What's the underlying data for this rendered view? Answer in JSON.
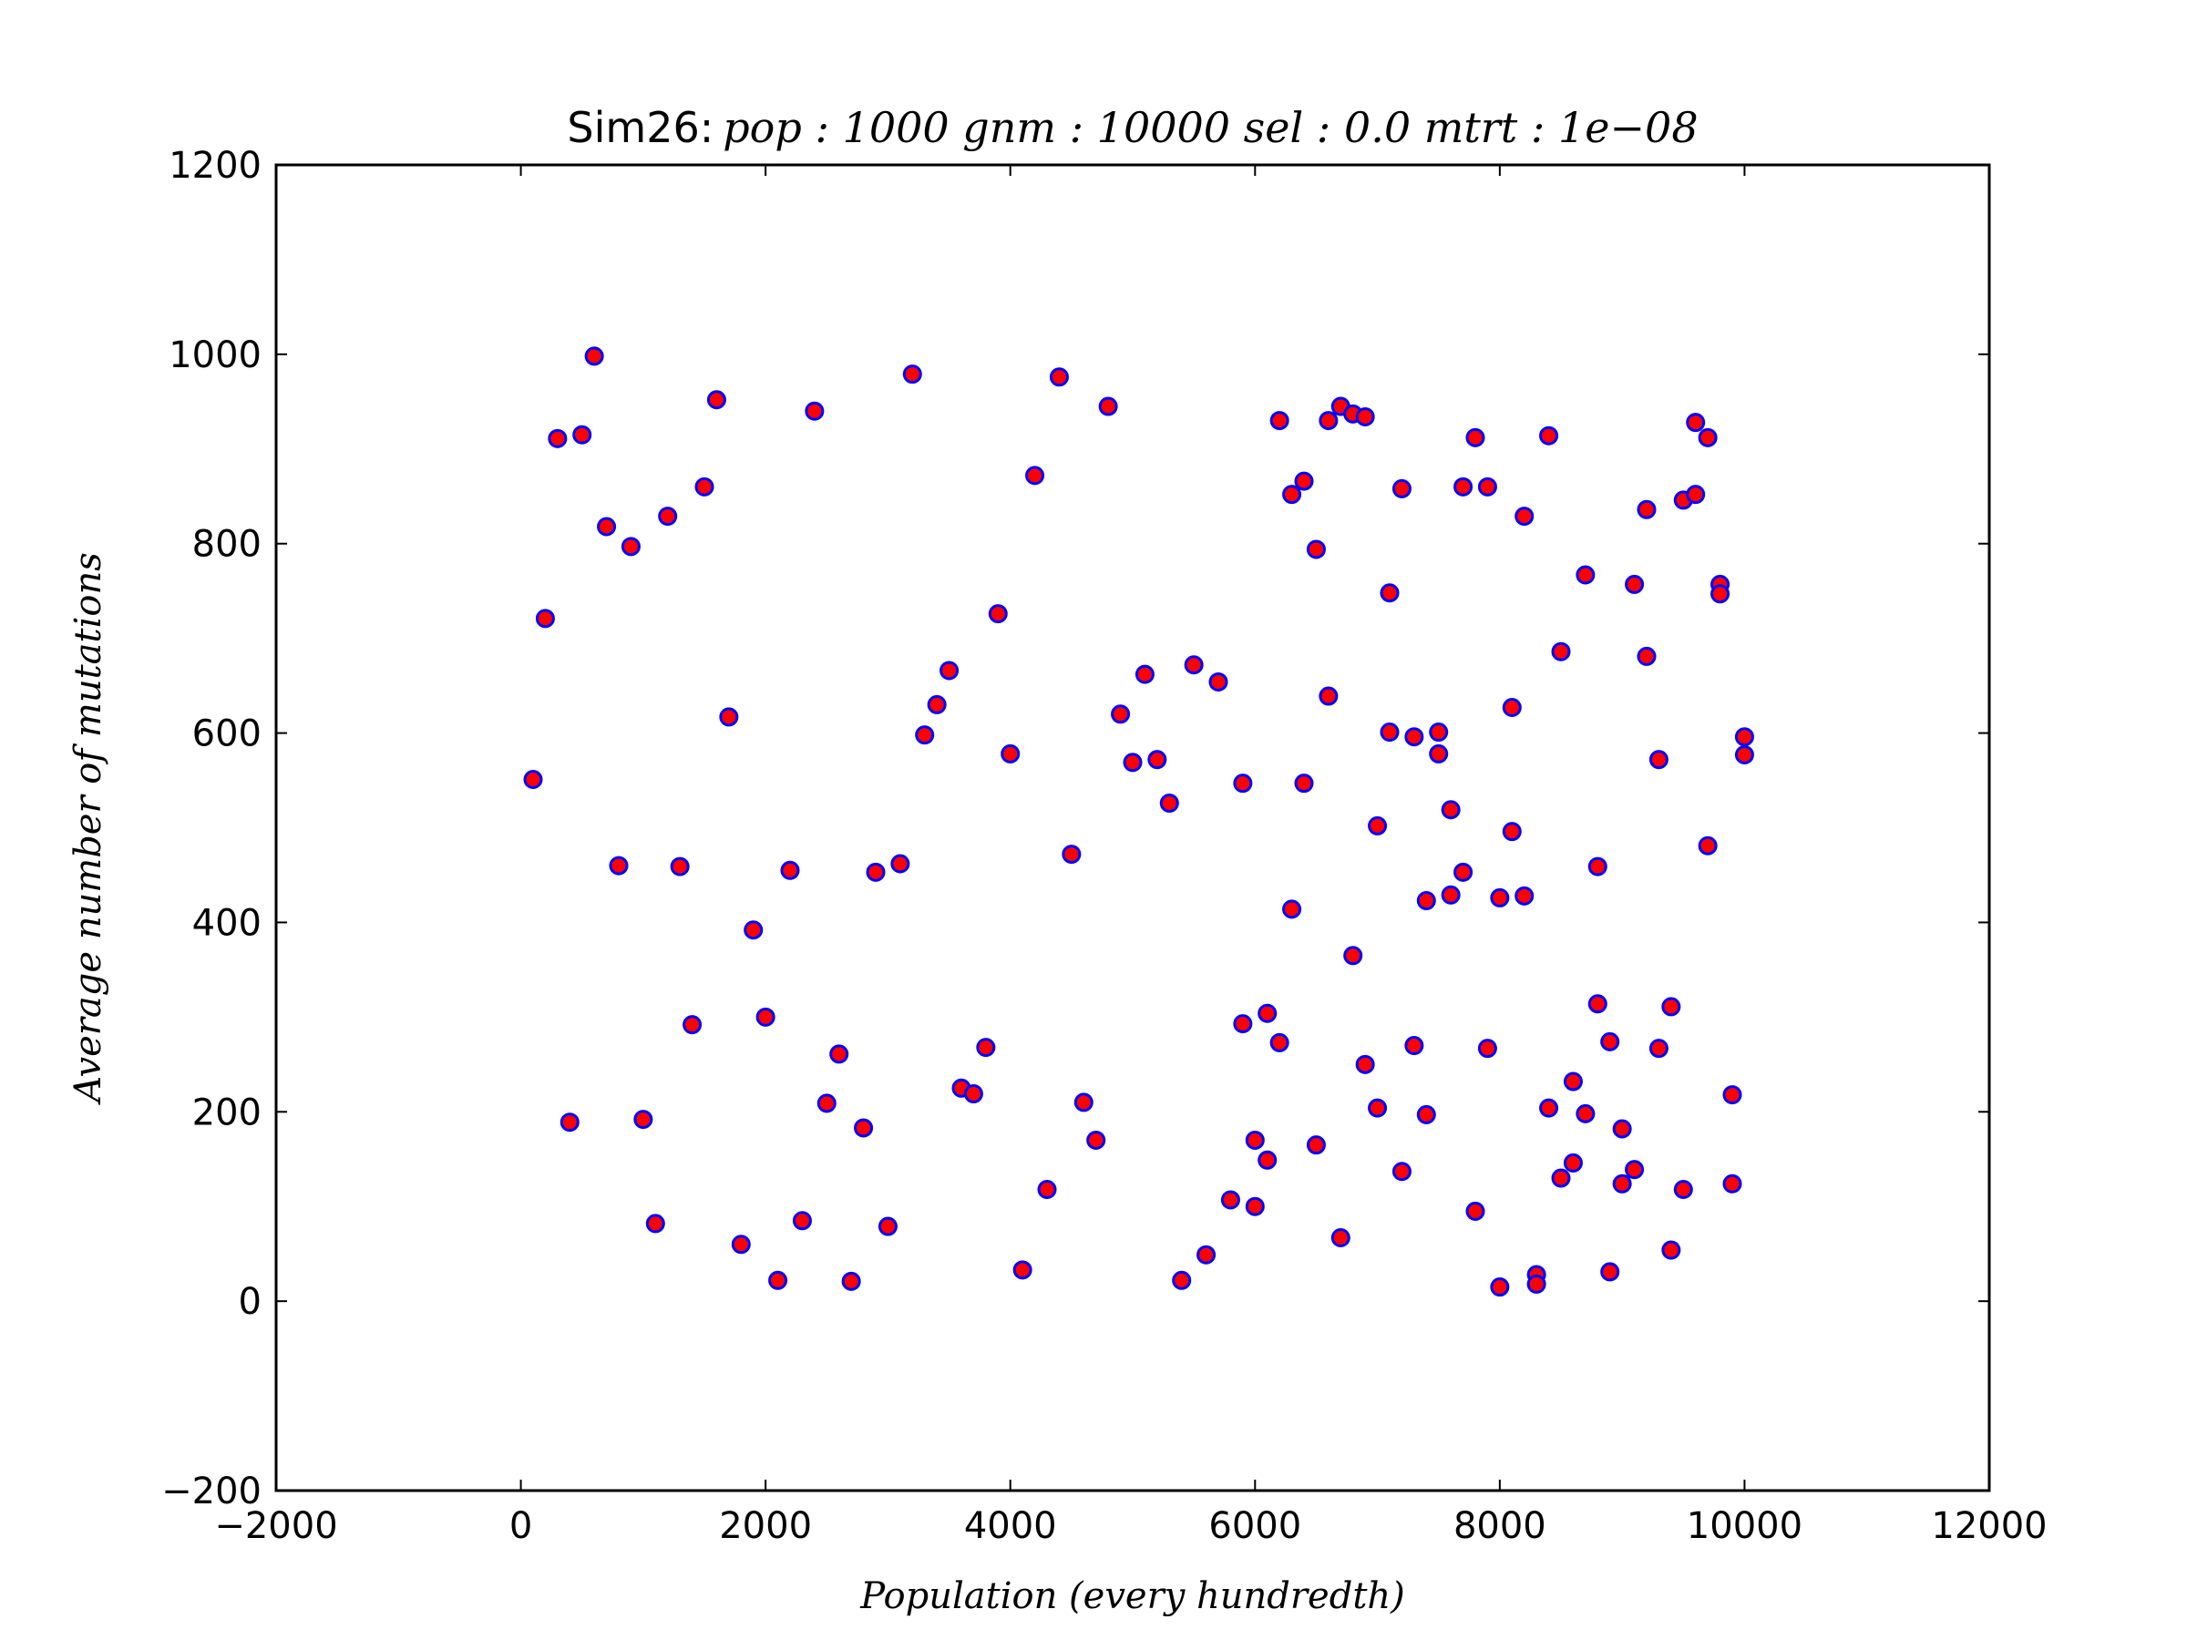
{
  "chart_data": {
    "type": "scatter",
    "title": "Sim26:",
    "title_math": "pop : 1000 gnm : 10000 sel : 0.0 mtrt : 1e−08",
    "xlabel": "Population (every hundredth)",
    "ylabel": "Average number of mutations",
    "color": "#ff0000",
    "edgecolor": "#0000ff",
    "xlim": [
      -2000,
      12000
    ],
    "xticks": [
      {
        "value": -2000,
        "label": "−2000"
      },
      0,
      2000,
      4000,
      6000,
      8000,
      10000,
      12000
    ],
    "ylim": [
      -200,
      1200
    ],
    "yticks": [
      {
        "value": -200,
        "label": "−200"
      },
      0,
      200,
      400,
      600,
      800,
      1000,
      1200
    ],
    "x": [
      100,
      200,
      300,
      400,
      500,
      600,
      700,
      800,
      900,
      1000,
      1100,
      1200,
      1300,
      1400,
      1500,
      1600,
      1700,
      1800,
      1900,
      2000,
      2100,
      2200,
      2300,
      2400,
      2500,
      2600,
      2700,
      2800,
      2900,
      3000,
      3100,
      3200,
      3300,
      3400,
      3500,
      3600,
      3700,
      3800,
      3900,
      4000,
      4100,
      4200,
      4300,
      4400,
      4500,
      4600,
      4700,
      4800,
      4900,
      5000,
      5100,
      5200,
      5300,
      5400,
      5500,
      5600,
      5700,
      5800,
      5900,
      5900,
      6000,
      6000,
      6100,
      6100,
      6200,
      6200,
      6300,
      6300,
      6400,
      6400,
      6500,
      6500,
      6600,
      6600,
      6700,
      6700,
      6800,
      6800,
      6900,
      6900,
      7000,
      7000,
      7100,
      7100,
      7200,
      7200,
      7300,
      7300,
      7400,
      7400,
      7500,
      7500,
      7600,
      7600,
      7700,
      7700,
      7800,
      7800,
      7900,
      7900,
      8000,
      8000,
      8100,
      8100,
      8200,
      8200,
      8300,
      8300,
      8400,
      8400,
      8500,
      8500,
      8600,
      8600,
      8700,
      8700,
      8800,
      8800,
      8900,
      8900,
      9000,
      9000,
      9100,
      9100,
      9200,
      9200,
      9300,
      9300,
      9400,
      9400,
      9500,
      9500,
      9600,
      9600,
      9700,
      9700,
      9800,
      9800,
      9900,
      9900,
      10000,
      10000
    ],
    "values": [
      551,
      721,
      911,
      189,
      915,
      998,
      818,
      460,
      797,
      192,
      82,
      829,
      459,
      292,
      860,
      952,
      617,
      60,
      392,
      300,
      22,
      455,
      85,
      940,
      209,
      261,
      21,
      183,
      453,
      79,
      462,
      979,
      598,
      630,
      666,
      225,
      219,
      268,
      726,
      578,
      33,
      872,
      118,
      976,
      472,
      210,
      170,
      945,
      620,
      569,
      662,
      572,
      526,
      22,
      672,
      49,
      654,
      107,
      547,
      293,
      170,
      100,
      304,
      149,
      930,
      273,
      852,
      414,
      866,
      547,
      794,
      165,
      930,
      639,
      945,
      67,
      937,
      365,
      934,
      250,
      502,
      204,
      748,
      601,
      858,
      137,
      596,
      270,
      423,
      197,
      601,
      578,
      519,
      429,
      860,
      453,
      912,
      95,
      860,
      267,
      426,
      15,
      627,
      496,
      829,
      428,
      28,
      18,
      914,
      204,
      686,
      130,
      232,
      146,
      767,
      198,
      459,
      314,
      274,
      31,
      182,
      124,
      757,
      139,
      836,
      681,
      572,
      267,
      311,
      54,
      846,
      118,
      928,
      852,
      912,
      481,
      757,
      747,
      218,
      124,
      596,
      577
    ]
  }
}
